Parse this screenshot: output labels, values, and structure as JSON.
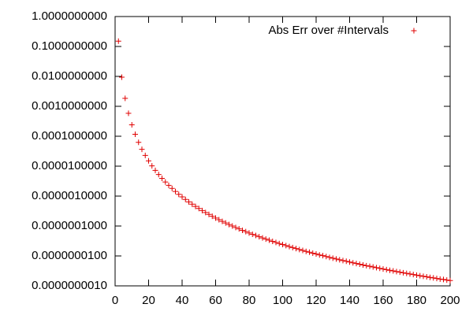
{
  "chart_data": {
    "type": "scatter",
    "log_y": true,
    "legend": "top-right",
    "xlim": [
      0,
      200
    ],
    "xticks": [
      0,
      20,
      40,
      60,
      80,
      100,
      120,
      140,
      160,
      180,
      200
    ],
    "ylim": [
      1e-09,
      1
    ],
    "yticks": [
      {
        "value": 1e-09,
        "label": "0.0000000010"
      },
      {
        "value": 1e-08,
        "label": "0.0000000100"
      },
      {
        "value": 1e-07,
        "label": "0.0000001000"
      },
      {
        "value": 1e-06,
        "label": "0.0000010000"
      },
      {
        "value": 1e-05,
        "label": "0.0000100000"
      },
      {
        "value": 0.0001,
        "label": "0.0001000000"
      },
      {
        "value": 0.001,
        "label": "0.0010000000"
      },
      {
        "value": 0.01,
        "label": "0.0100000000"
      },
      {
        "value": 0.1,
        "label": "0.1000000000"
      },
      {
        "value": 1,
        "label": "1.0000000000"
      }
    ],
    "series": [
      {
        "name": "Abs Err over #Intervals",
        "color": "#e00000",
        "x": [
          2,
          4,
          6,
          8,
          10,
          12,
          14,
          16,
          18,
          20,
          22,
          24,
          26,
          28,
          30,
          32,
          34,
          36,
          38,
          40,
          42,
          44,
          46,
          48,
          50,
          52,
          54,
          56,
          58,
          60,
          62,
          64,
          66,
          68,
          70,
          72,
          74,
          76,
          78,
          80,
          82,
          84,
          86,
          88,
          90,
          92,
          94,
          96,
          98,
          100,
          102,
          104,
          106,
          108,
          110,
          112,
          114,
          116,
          118,
          120,
          122,
          124,
          126,
          128,
          130,
          132,
          134,
          136,
          138,
          140,
          142,
          144,
          146,
          148,
          150,
          152,
          154,
          156,
          158,
          160,
          162,
          164,
          166,
          168,
          170,
          172,
          174,
          176,
          178,
          180,
          182,
          184,
          186,
          188,
          190,
          192,
          194,
          196,
          198,
          200
        ],
        "values": [
          0.15,
          0.00938,
          0.00185,
          0.000586,
          0.00024,
          0.000116,
          6.25e-05,
          3.66e-05,
          2.29e-05,
          1.5e-05,
          1.02e-05,
          7.23e-06,
          5.25e-06,
          3.9e-06,
          2.96e-06,
          2.29e-06,
          1.8e-06,
          1.43e-06,
          1.15e-06,
          9.38e-07,
          7.71e-07,
          6.4e-07,
          5.36e-07,
          4.52e-07,
          3.84e-07,
          3.28e-07,
          2.82e-07,
          2.44e-07,
          2.12e-07,
          1.85e-07,
          1.62e-07,
          1.43e-07,
          1.26e-07,
          1.12e-07,
          1e-07,
          8.93e-08,
          8e-08,
          7.19e-08,
          6.48e-08,
          5.86e-08,
          5.31e-08,
          4.82e-08,
          4.39e-08,
          4e-08,
          3.66e-08,
          3.35e-08,
          3.07e-08,
          2.83e-08,
          2.6e-08,
          2.4e-08,
          2.22e-08,
          2.05e-08,
          1.9e-08,
          1.76e-08,
          1.64e-08,
          1.53e-08,
          1.42e-08,
          1.33e-08,
          1.24e-08,
          1.16e-08,
          1.08e-08,
          1.02e-08,
          9.52e-09,
          8.94e-09,
          8.4e-09,
          7.91e-09,
          7.44e-09,
          7.02e-09,
          6.62e-09,
          6.25e-09,
          5.9e-09,
          5.58e-09,
          5.28e-09,
          5e-09,
          4.74e-09,
          4.5e-09,
          4.27e-09,
          4.05e-09,
          3.85e-09,
          3.66e-09,
          3.48e-09,
          3.32e-09,
          3.16e-09,
          3.01e-09,
          2.87e-09,
          2.74e-09,
          2.62e-09,
          2.5e-09,
          2.39e-09,
          2.29e-09,
          2.19e-09,
          2.09e-09,
          2e-09,
          1.92e-09,
          1.84e-09,
          1.77e-09,
          1.69e-09,
          1.63e-09,
          1.56e-09,
          1.5e-09
        ]
      }
    ]
  }
}
